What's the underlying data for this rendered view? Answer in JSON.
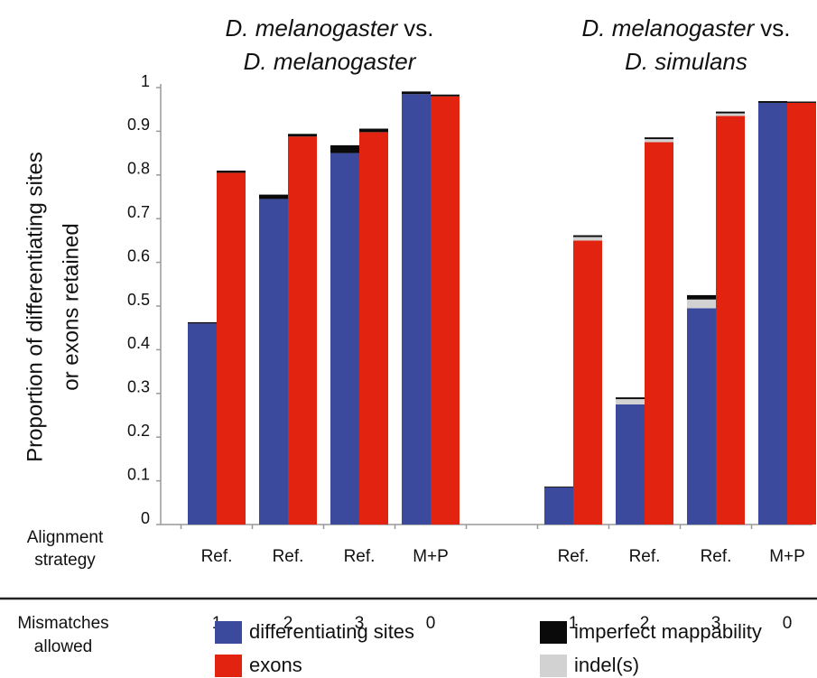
{
  "chart_data": {
    "type": "bar",
    "stacked": true,
    "ylabel": [
      "Proportion of differentiating sites",
      "or exons retained"
    ],
    "row_labels": {
      "alignment": [
        "Alignment",
        "strategy"
      ],
      "mismatches": [
        "Mismatches",
        "allowed"
      ]
    },
    "ylim": [
      0,
      1
    ],
    "yticks": [
      0,
      0.1,
      0.2,
      0.3,
      0.4,
      0.5,
      0.6,
      0.7,
      0.8,
      0.9,
      1
    ],
    "series": [
      {
        "name": "differentiating sites",
        "color": "#3c4a9e"
      },
      {
        "name": "exons",
        "color": "#e2230f"
      },
      {
        "name": "imperfect mappability",
        "color": "#0a0a0a"
      },
      {
        "name": "indel(s)",
        "color": "#d2d2d2"
      }
    ],
    "groups": [
      {
        "title": [
          [
            {
              "text": "D. melanogaster",
              "italic": true
            },
            {
              "text": "vs.",
              "italic": false
            }
          ],
          [
            {
              "text": "D. melanogaster",
              "italic": true
            }
          ]
        ],
        "categories": [
          "Ref.",
          "Ref.",
          "Ref.",
          "M+P"
        ],
        "mismatches": [
          1,
          2,
          3,
          0
        ],
        "sites": {
          "values": [
            0.46,
            0.745,
            0.85,
            0.985
          ],
          "indel": [
            0,
            0,
            0,
            0
          ],
          "imperfect": [
            0.003,
            0.01,
            0.018,
            0.006
          ]
        },
        "exons": {
          "values": [
            0.805,
            0.888,
            0.898,
            0.98
          ],
          "indel": [
            0,
            0,
            0,
            0
          ],
          "imperfect": [
            0.005,
            0.006,
            0.008,
            0.004
          ]
        }
      },
      {
        "title": [
          [
            {
              "text": "D. melanogaster",
              "italic": true
            },
            {
              "text": "vs.",
              "italic": false
            }
          ],
          [
            {
              "text": "D. simulans",
              "italic": true
            }
          ]
        ],
        "categories": [
          "Ref.",
          "Ref.",
          "Ref.",
          "M+P"
        ],
        "mismatches": [
          1,
          2,
          3,
          0
        ],
        "sites": {
          "values": [
            0.085,
            0.275,
            0.495,
            0.965
          ],
          "indel": [
            0,
            0.012,
            0.02,
            0
          ],
          "imperfect": [
            0.002,
            0.004,
            0.01,
            0.004
          ]
        },
        "exons": {
          "values": [
            0.65,
            0.875,
            0.935,
            0.965
          ],
          "indel": [
            0.008,
            0.007,
            0.006,
            0
          ],
          "imperfect": [
            0.004,
            0.004,
            0.004,
            0.003
          ]
        }
      }
    ]
  }
}
